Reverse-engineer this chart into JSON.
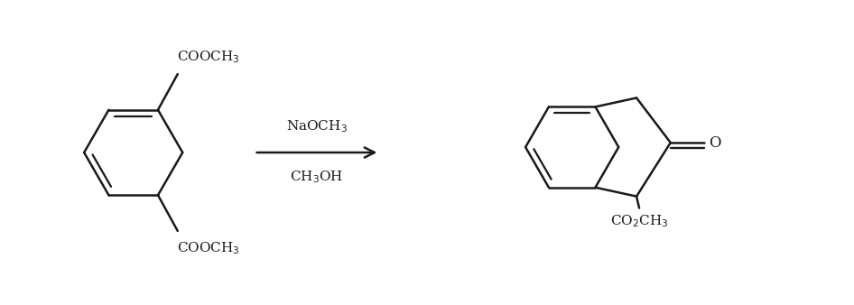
{
  "bg_color": "#ffffff",
  "line_color": "#1a1a1a",
  "line_width": 1.8,
  "font_size": 11,
  "reagent1": "NaOCH$_3$",
  "reagent2": "CH$_3$OH",
  "label_COOCH3_top": "COOCH$_3$",
  "label_COOCH3_bot": "COOCH$_3$",
  "label_CO2CH3": "CO$_2$CH$_3$",
  "label_O": "O"
}
